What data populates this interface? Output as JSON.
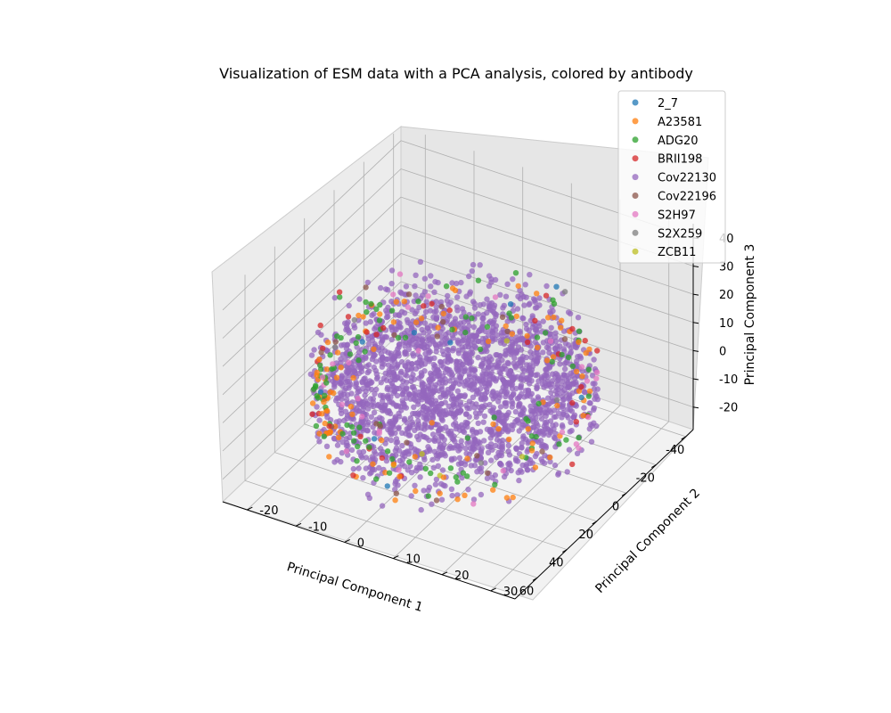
{
  "chart_data": {
    "type": "scatter",
    "projection": "3d",
    "title": "Visualization of ESM data with a PCA analysis, colored by antibody",
    "xlabel": "Principal Component 1",
    "ylabel": "Principal Component 2",
    "zlabel": "Principal Component 3",
    "xlim": [
      -45,
      75
    ],
    "ylim": [
      -25,
      35
    ],
    "zlim": [
      -28,
      45
    ],
    "xticks": [
      -40,
      -20,
      0,
      20,
      40,
      60
    ],
    "yticks": [
      -20,
      -10,
      0,
      10,
      20,
      30
    ],
    "zticks": [
      -20,
      -10,
      0,
      10,
      20,
      30,
      40
    ],
    "grid": true,
    "legend_position": "upper right",
    "series": [
      {
        "name": "2_7",
        "color": "#1f77b4"
      },
      {
        "name": "A23581",
        "color": "#ff7f0e"
      },
      {
        "name": "ADG20",
        "color": "#2ca02c"
      },
      {
        "name": "BRII198",
        "color": "#d62728"
      },
      {
        "name": "Cov22130",
        "color": "#9467bd"
      },
      {
        "name": "Cov22196",
        "color": "#8c564b"
      },
      {
        "name": "S2H97",
        "color": "#e377c2"
      },
      {
        "name": "S2X259",
        "color": "#7f7f7f"
      },
      {
        "name": "ZCB11",
        "color": "#bcbd22"
      }
    ],
    "cloud_extent": {
      "x": [
        -35,
        70
      ],
      "y": [
        -20,
        30
      ],
      "z": [
        -22,
        25
      ]
    }
  }
}
